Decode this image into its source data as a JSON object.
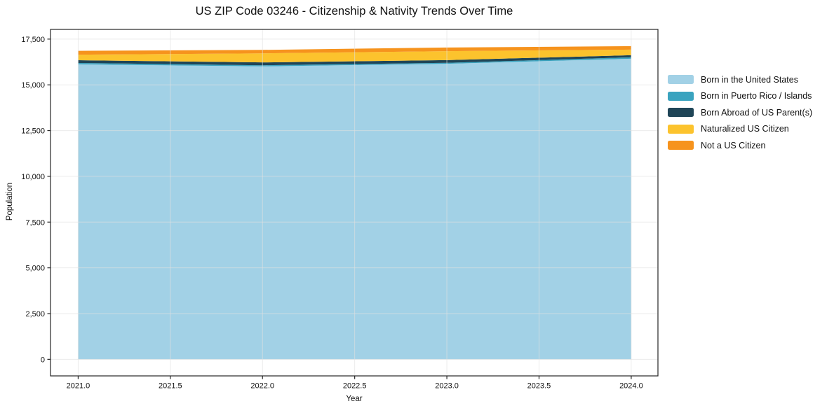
{
  "title": "US ZIP Code 03246 - Citizenship & Nativity Trends Over Time",
  "chart_data": {
    "type": "area",
    "stacked": true,
    "x": [
      2021,
      2022,
      2023,
      2024
    ],
    "series": [
      {
        "name": "Born in the United States",
        "color": "#a2d1e6",
        "values": [
          16120,
          16010,
          16150,
          16430
        ]
      },
      {
        "name": "Born in Puerto Rico / Islands",
        "color": "#3aa3bf",
        "values": [
          75,
          60,
          55,
          75
        ]
      },
      {
        "name": "Born Abroad of US Parent(s)",
        "color": "#1f4557",
        "values": [
          150,
          155,
          145,
          115
        ]
      },
      {
        "name": "Naturalized US Citizen",
        "color": "#fcc32d",
        "values": [
          305,
          495,
          490,
          305
        ]
      },
      {
        "name": "Not a US Citizen",
        "color": "#f6931d",
        "values": [
          210,
          190,
          200,
          190
        ]
      }
    ],
    "title": "US ZIP Code 03246 - Citizenship & Nativity Trends Over Time",
    "xlabel": "Year",
    "ylabel": "Population",
    "xticks": [
      2021.0,
      2021.5,
      2022.0,
      2022.5,
      2023.0,
      2023.5,
      2024.0
    ],
    "xtick_labels": [
      "2021.0",
      "2021.5",
      "2022.0",
      "2022.5",
      "2023.0",
      "2023.5",
      "2024.0"
    ],
    "yticks": [
      0,
      2500,
      5000,
      7500,
      10000,
      12500,
      15000,
      17500
    ],
    "ytick_labels": [
      "0",
      "2,500",
      "5,000",
      "7,500",
      "10,000",
      "12,500",
      "15,000",
      "17,500"
    ],
    "xlim": [
      2020.85,
      2024.145
    ],
    "ylim": [
      -905,
      18030
    ],
    "grid": true,
    "legend_position": "right of plot, no border",
    "axis_color": "#262626",
    "grid_color": "#e0e0e0",
    "background": "#ffffff"
  }
}
